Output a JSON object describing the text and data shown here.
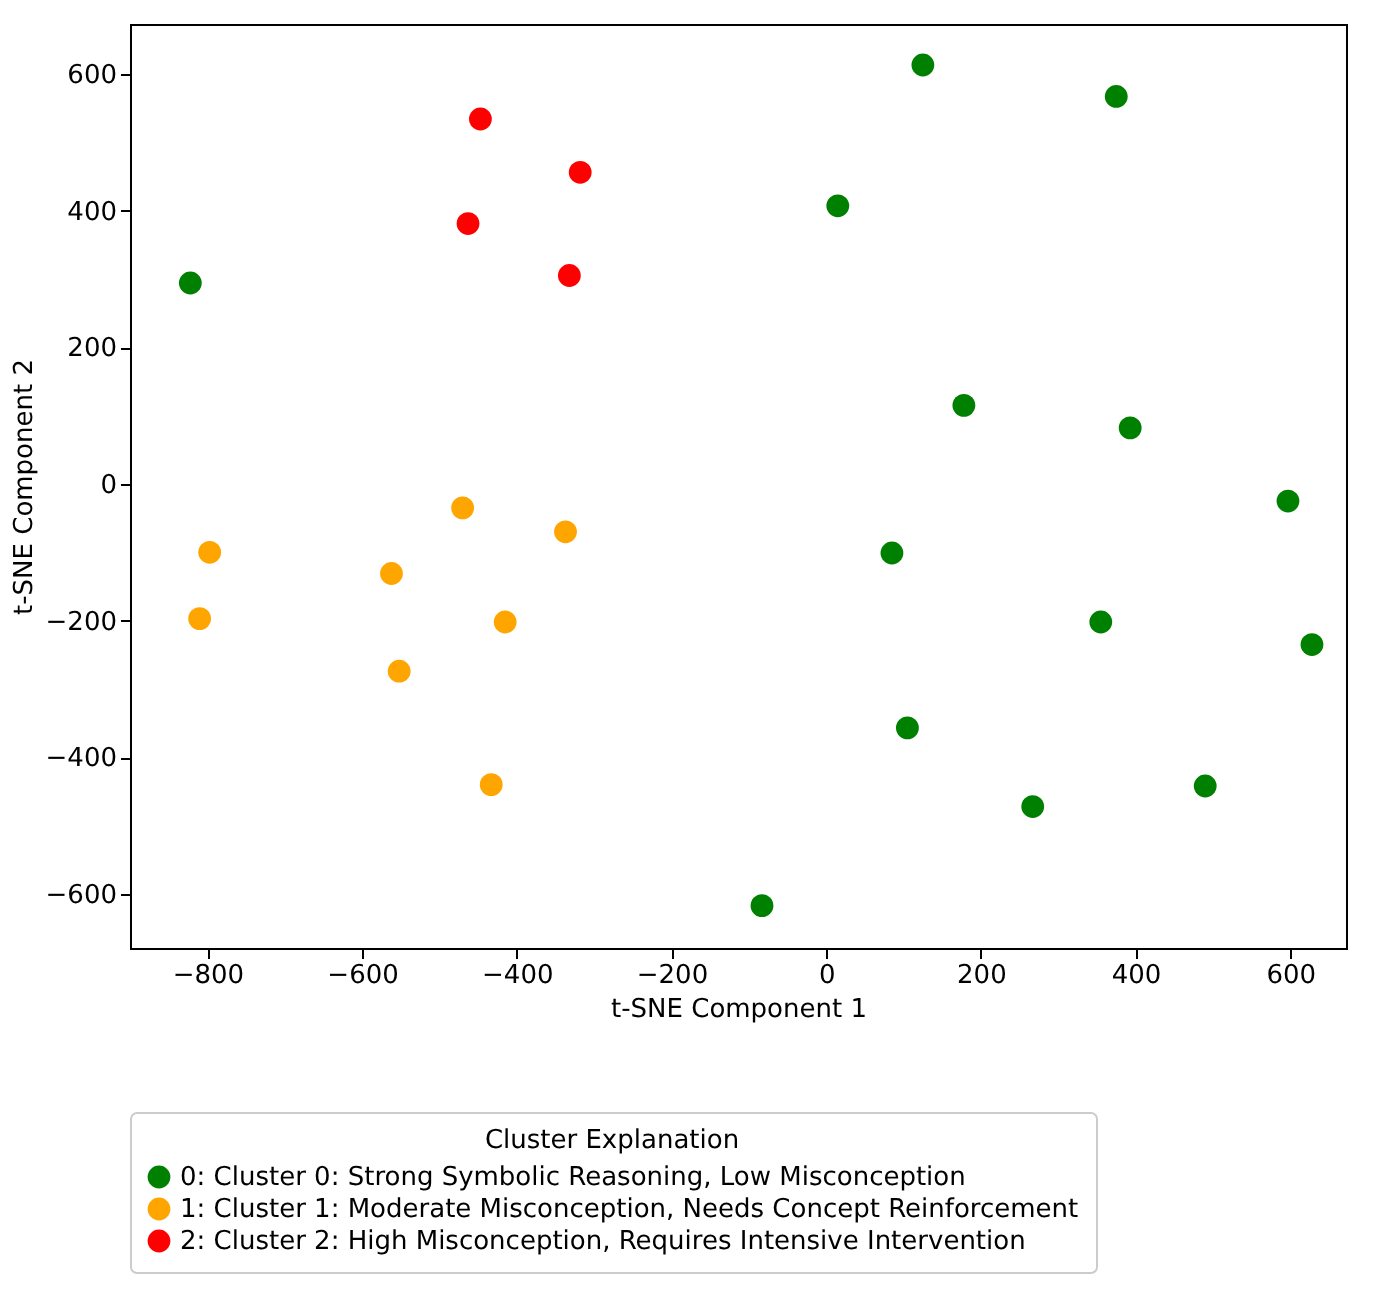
{
  "chart_data": {
    "type": "scatter",
    "xlabel": "t-SNE Component 1",
    "ylabel": "t-SNE Component 2",
    "legend_title": "Cluster Explanation",
    "xlim": [
      -900,
      672
    ],
    "ylim": [
      -679,
      673
    ],
    "xticks": [
      -800,
      -600,
      -400,
      -200,
      0,
      200,
      400,
      600
    ],
    "yticks": [
      -600,
      -400,
      -200,
      0,
      200,
      400,
      600
    ],
    "grid": false,
    "legend": "bottom",
    "marker": "circle",
    "series": [
      {
        "name": "0: Cluster 0: Strong Symbolic Reasoning, Low Misconception",
        "color": "#008000",
        "x": [
          -822,
          125,
          375,
          15,
          178,
          393,
          597,
          85,
          355,
          628,
          105,
          267,
          490,
          -83
        ],
        "values": [
          294,
          613,
          567,
          407,
          115,
          82,
          -25,
          -101,
          -202,
          -235,
          -357,
          -472,
          -442,
          -617
        ]
      },
      {
        "name": "1: Cluster 1: Moderate Misconception, Needs Concept Reinforcement",
        "color": "#ffa500",
        "x": [
          -797,
          -810,
          -470,
          -337,
          -562,
          -415,
          -552,
          -433
        ],
        "values": [
          -100,
          -197,
          -35,
          -70,
          -131,
          -202,
          -274,
          -440
        ]
      },
      {
        "name": "2: Cluster 2: High Misconception, Requires Intensive Intervention",
        "color": "#ff0000",
        "x": [
          -447,
          -318,
          -463,
          -332
        ],
        "values": [
          534,
          456,
          381,
          305
        ]
      }
    ]
  }
}
